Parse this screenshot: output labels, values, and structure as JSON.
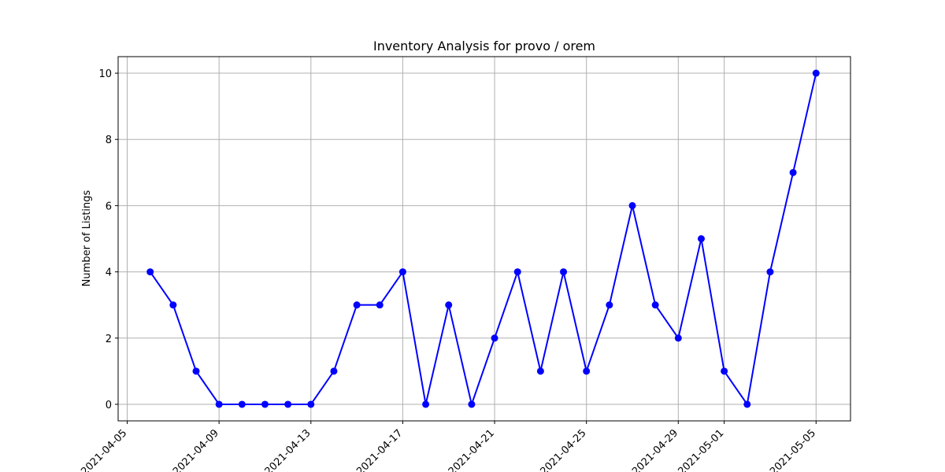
{
  "chart_data": {
    "type": "line",
    "title": "Inventory Analysis for provo / orem",
    "xlabel": "",
    "ylabel": "Number of Listings",
    "x": [
      "2021-04-06",
      "2021-04-07",
      "2021-04-08",
      "2021-04-09",
      "2021-04-10",
      "2021-04-11",
      "2021-04-12",
      "2021-04-13",
      "2021-04-14",
      "2021-04-15",
      "2021-04-16",
      "2021-04-17",
      "2021-04-18",
      "2021-04-19",
      "2021-04-20",
      "2021-04-21",
      "2021-04-22",
      "2021-04-23",
      "2021-04-24",
      "2021-04-25",
      "2021-04-26",
      "2021-04-27",
      "2021-04-28",
      "2021-04-29",
      "2021-04-30",
      "2021-05-01",
      "2021-05-02",
      "2021-05-03",
      "2021-05-04",
      "2021-05-05"
    ],
    "y": [
      4,
      3,
      1,
      0,
      0,
      0,
      0,
      0,
      1,
      3,
      3,
      4,
      0,
      3,
      0,
      2,
      4,
      1,
      4,
      1,
      3,
      6,
      3,
      2,
      5,
      1,
      0,
      4,
      7,
      10
    ],
    "xticks": [
      "2021-04-05",
      "2021-04-09",
      "2021-04-13",
      "2021-04-17",
      "2021-04-21",
      "2021-04-25",
      "2021-04-29",
      "2021-05-01",
      "2021-05-05"
    ],
    "yticks": [
      0,
      2,
      4,
      6,
      8,
      10
    ],
    "xlim": [
      "2021-04-04T14:30:00",
      "2021-05-06T12:00:00"
    ],
    "ylim": [
      -0.5,
      10.5
    ],
    "grid": true,
    "line_color": "#0000ff",
    "marker": "circle"
  }
}
